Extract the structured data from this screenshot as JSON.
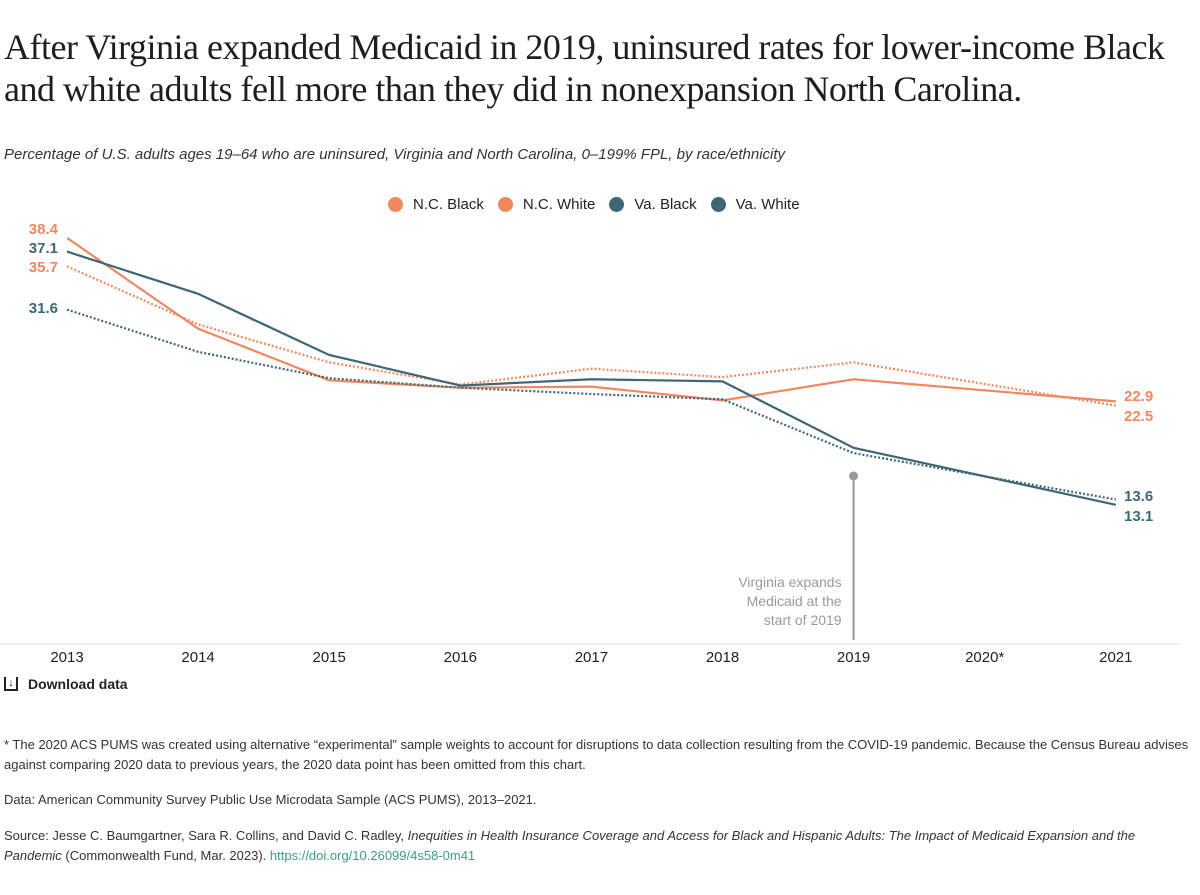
{
  "title": "After Virginia expanded Medicaid in 2019, uninsured rates for lower-income Black and white adults fell more than they did in nonexpansion North Carolina.",
  "subtitle": "Percentage of U.S. adults ages 19–64 who are uninsured, Virginia and North Carolina, 0–199% FPL, by race/ethnicity",
  "colors": {
    "nc": "#f0875f",
    "va": "#3d6677",
    "annotation": "#999999"
  },
  "chart_data": {
    "type": "line",
    "categories": [
      "2013",
      "2014",
      "2015",
      "2016",
      "2017",
      "2018",
      "2019",
      "2020*",
      "2021"
    ],
    "ylim": [
      0,
      40
    ],
    "grid": false,
    "legend": "top",
    "series": [
      {
        "name": "N.C. Black",
        "color": "#f0875f",
        "style": "solid",
        "values": [
          38.4,
          29.8,
          24.9,
          24.2,
          24.3,
          23.0,
          25.0,
          null,
          22.9
        ],
        "start_label": "38.4",
        "end_label": "22.9"
      },
      {
        "name": "N.C. White",
        "color": "#f0875f",
        "style": "dotted",
        "values": [
          35.7,
          30.2,
          26.6,
          24.5,
          26.0,
          25.2,
          26.6,
          null,
          22.5
        ],
        "start_label": "35.7",
        "end_label": "22.5"
      },
      {
        "name": "Va. Black",
        "color": "#3d6677",
        "style": "solid",
        "values": [
          37.1,
          33.1,
          27.3,
          24.4,
          25.0,
          24.8,
          18.5,
          null,
          13.1
        ],
        "start_label": "37.1",
        "end_label": "13.1"
      },
      {
        "name": "Va. White",
        "color": "#3d6677",
        "style": "dotted",
        "values": [
          31.6,
          27.6,
          25.1,
          24.2,
          23.6,
          23.1,
          18.0,
          null,
          13.6
        ],
        "start_label": "31.6",
        "end_label": "13.6"
      }
    ],
    "annotation": {
      "x": "2019",
      "lines": [
        "Virginia expands",
        "Medicaid at the",
        "start of 2019"
      ]
    }
  },
  "download_label": "Download data",
  "footnote": "* The 2020 ACS PUMS was created using alternative “experimental” sample weights to account for disruptions to data collection resulting from the COVID-19 pandemic. Because the Census Bureau advises against comparing 2020 data to previous years, the 2020 data point has been omitted from this chart.",
  "data_note": "Data: American Community Survey Public Use Microdata Sample (ACS PUMS), 2013–2021.",
  "source": {
    "prefix": "Source: Jesse C. Baumgartner, Sara R. Collins, and David C. Radley, ",
    "title": "Inequities in Health Insurance Coverage and Access for Black and Hispanic Adults: The Impact of Medicaid Expansion and the Pandemic",
    "suffix": " (Commonwealth Fund, Mar. 2023). ",
    "link": "https://doi.org/10.26099/4s58-0m41"
  }
}
